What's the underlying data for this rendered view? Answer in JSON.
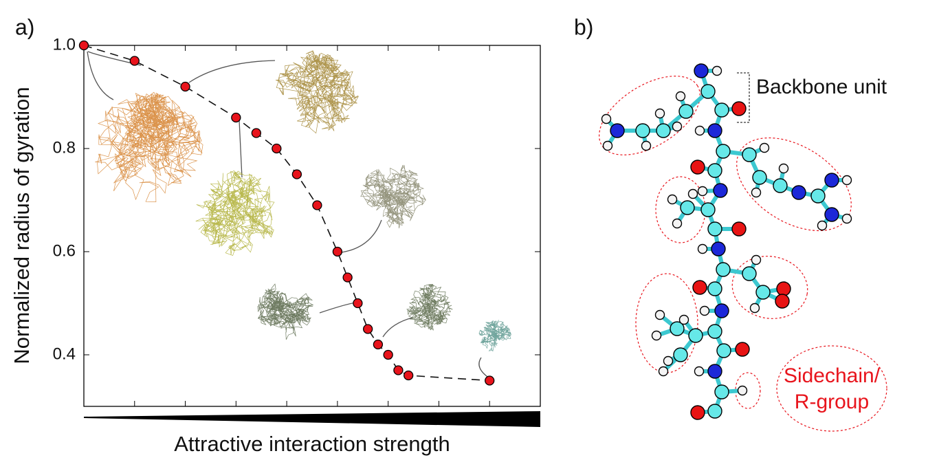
{
  "chart_data": {
    "type": "line",
    "panel_label": "a)",
    "xlabel": "Attractive interaction strength",
    "ylabel": "Normalized radius of gyration",
    "x": [
      0,
      1,
      2,
      3,
      3.4,
      3.8,
      4.2,
      4.6,
      5,
      5.2,
      5.4,
      5.6,
      5.8,
      6,
      6.2,
      6.4,
      8
    ],
    "series": [
      {
        "color": "#e8141c",
        "values": [
          1.0,
          0.97,
          0.92,
          0.86,
          0.83,
          0.8,
          0.75,
          0.69,
          0.6,
          0.55,
          0.5,
          0.45,
          0.42,
          0.4,
          0.37,
          0.36,
          0.35
        ]
      }
    ],
    "xlim": [
      0,
      9
    ],
    "xticks": [
      0,
      1,
      2,
      3,
      4,
      5,
      6,
      7,
      8
    ],
    "ylim": [
      0.3,
      1.0
    ],
    "yticks": [
      {
        "value": 0.4,
        "label": "0.4"
      },
      {
        "value": 0.6,
        "label": "0.6"
      },
      {
        "value": 0.8,
        "label": "0.8"
      },
      {
        "value": 1.0,
        "label": "1.0"
      }
    ]
  },
  "diagram": {
    "panel_label": "b)",
    "backbone_label": "Backbone unit",
    "sidechain_label": [
      "Sidechain/",
      "R-group"
    ]
  }
}
